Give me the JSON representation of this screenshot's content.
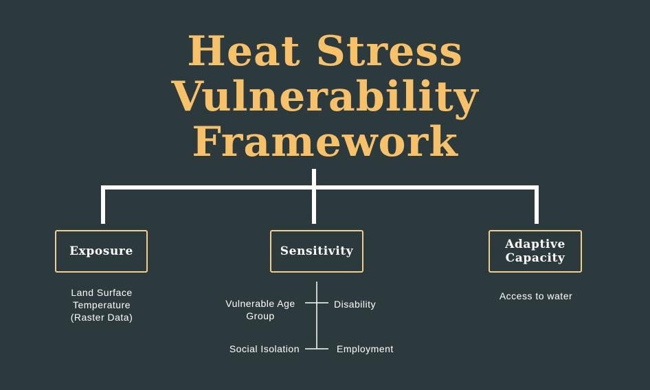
{
  "title": {
    "line1": "Heat Stress",
    "line2": "Vulnerability",
    "line3": "Framework"
  },
  "exposure": {
    "label": "Exposure",
    "item_line1": "Land Surface",
    "item_line2": "Temperature",
    "item_line3": "(Raster Data)"
  },
  "sensitivity": {
    "label": "Sensitivity",
    "items": {
      "vulnerable_age_line1": "Vulnerable Age",
      "vulnerable_age_line2": "Group",
      "disability": "Disability",
      "social_isolation": "Social Isolation",
      "employment": "Employment"
    }
  },
  "adaptive_capacity": {
    "label_line1": "Adaptive",
    "label_line2": "Capacity",
    "item": "Access to water"
  },
  "colors": {
    "background": "#2d3a3d",
    "title": "#f7c16a",
    "box_border": "#f2cf8a",
    "lines": "#ffffff"
  }
}
